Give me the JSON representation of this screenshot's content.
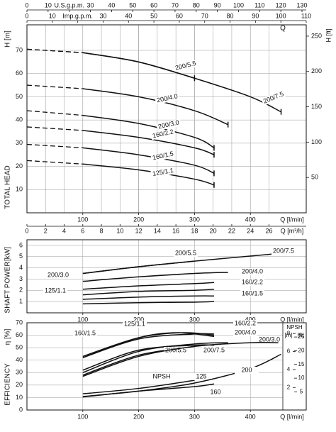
{
  "chart_data": [
    {
      "type": "line",
      "y_label": "H [m]",
      "y_title": "TOTAL HEAD",
      "y2_label": "H [ft]",
      "xlim": [
        0,
        500
      ],
      "xticks": [
        100,
        200,
        300,
        400
      ],
      "x_label": "Q [l/min]",
      "ylim": [
        0,
        81
      ],
      "yticks": [
        10,
        20,
        30,
        40,
        50,
        60,
        70
      ],
      "y2lim": [
        0,
        266
      ],
      "y2ticks": [
        50,
        100,
        150,
        200,
        250
      ],
      "top_label": "Q",
      "top_axes": [
        {
          "label": "U.S.g.p.m.",
          "lim": [
            0,
            132
          ],
          "ticks": [
            0,
            10,
            20,
            30,
            40,
            50,
            60,
            70,
            80,
            90,
            100,
            110,
            120,
            130
          ]
        },
        {
          "label": "Imp.g.p.m.",
          "lim": [
            0,
            110
          ],
          "ticks": [
            0,
            10,
            20,
            30,
            40,
            50,
            60,
            70,
            80,
            90,
            100,
            110
          ]
        }
      ],
      "bottom_axis2": {
        "label": "Q [m³/h]",
        "lim": [
          0,
          30
        ],
        "ticks": [
          0,
          2,
          4,
          6,
          8,
          10,
          12,
          14,
          16,
          18,
          20,
          22,
          24,
          26
        ]
      },
      "dashed_first_segment": true,
      "grid": true,
      "series": [
        {
          "name": "200/5.5",
          "color": "#111111",
          "x": [
            0,
            100,
            200,
            300
          ],
          "values": [
            70.5,
            69,
            65,
            58
          ]
        },
        {
          "name": "200/7.5",
          "color": "#111111",
          "x": [
            0,
            100,
            200,
            300,
            400,
            455
          ],
          "values": [
            70.5,
            69,
            65,
            58,
            50,
            43.5
          ]
        },
        {
          "name": "200/4.0",
          "color": "#111111",
          "x": [
            0,
            100,
            200,
            300,
            360
          ],
          "values": [
            55,
            53.5,
            50,
            44,
            38
          ]
        },
        {
          "name": "200/3.0",
          "color": "#111111",
          "x": [
            0,
            100,
            200,
            300,
            335
          ],
          "values": [
            44,
            42,
            38.5,
            32.5,
            28
          ]
        },
        {
          "name": "160/2.2",
          "color": "#111111",
          "x": [
            0,
            100,
            200,
            300,
            335
          ],
          "values": [
            37,
            35.5,
            32.5,
            28,
            25
          ]
        },
        {
          "name": "160/1.5",
          "color": "#111111",
          "x": [
            0,
            100,
            200,
            300,
            335
          ],
          "values": [
            29.5,
            28,
            25,
            20.5,
            17
          ]
        },
        {
          "name": "125/1.1",
          "color": "#111111",
          "x": [
            0,
            100,
            200,
            300,
            335
          ],
          "values": [
            22.5,
            21,
            18.5,
            14.5,
            12
          ]
        }
      ]
    },
    {
      "type": "line",
      "y_label": "[kW]",
      "y_title": "SHAFT POWER",
      "xlim": [
        0,
        500
      ],
      "xticks": [
        100,
        200,
        300,
        400
      ],
      "x_label": "Q [l/min]",
      "ylim": [
        0,
        6.5
      ],
      "yticks": [
        1,
        2,
        3,
        4,
        5,
        6
      ],
      "grid": true,
      "series": [
        {
          "name": "200/5.5",
          "color": "#111111",
          "x": [
            100,
            200,
            300
          ],
          "values": [
            3.5,
            4.1,
            4.6
          ]
        },
        {
          "name": "200/7.5",
          "color": "#111111",
          "x": [
            100,
            200,
            300,
            455
          ],
          "values": [
            3.5,
            4.1,
            4.6,
            5.3
          ]
        },
        {
          "name": "200/4.0",
          "color": "#111111",
          "x": [
            100,
            200,
            300,
            360
          ],
          "values": [
            2.8,
            3.2,
            3.5,
            3.6
          ]
        },
        {
          "name": "200/3.0",
          "color": "#111111",
          "x": [
            100,
            200,
            300,
            335
          ],
          "values": [
            2.1,
            2.4,
            2.6,
            2.7
          ]
        },
        {
          "name": "160/2.2",
          "color": "#111111",
          "x": [
            100,
            200,
            300,
            335
          ],
          "values": [
            1.6,
            1.9,
            2.0,
            2.1
          ]
        },
        {
          "name": "160/1.5",
          "color": "#111111",
          "x": [
            100,
            200,
            300,
            335
          ],
          "values": [
            1.2,
            1.4,
            1.5,
            1.5
          ]
        },
        {
          "name": "125/1.1",
          "color": "#111111",
          "x": [
            100,
            200,
            300,
            335
          ],
          "values": [
            0.8,
            0.9,
            0.95,
            1.0
          ]
        }
      ]
    },
    {
      "type": "line",
      "y_label": "η [%]",
      "y_title": "EFFICIENCY",
      "xlim": [
        0,
        500
      ],
      "xticks": [
        100,
        200,
        300,
        400
      ],
      "x_label": "Q [l/min]",
      "ylim": [
        0,
        70
      ],
      "yticks": [
        0,
        10,
        20,
        30,
        40,
        50,
        60,
        70
      ],
      "grid": true,
      "y2_label": "NPSH",
      "y2_unit": "[m]",
      "y3_unit": "[ft]",
      "y2lim": [
        -0.5,
        9.2
      ],
      "y2ticks": [
        2,
        4,
        6,
        8
      ],
      "y3lim": [
        -1.6,
        30.2
      ],
      "y3ticks": [
        5,
        10,
        15,
        20,
        25
      ],
      "npsh_label": "NPSH",
      "series": [
        {
          "name": "125/1.1",
          "color": "#111111",
          "x": [
            100,
            200,
            270,
            335
          ],
          "values": [
            42,
            58,
            62,
            59
          ]
        },
        {
          "name": "160/1.5",
          "color": "#111111",
          "x": [
            100,
            200,
            280,
            335
          ],
          "values": [
            43,
            58,
            62,
            60
          ]
        },
        {
          "name": "160/2.2",
          "color": "#111111",
          "x": [
            100,
            200,
            300,
            335
          ],
          "values": [
            42,
            57,
            61,
            61
          ]
        },
        {
          "name": "200/4.0",
          "color": "#111111",
          "x": [
            100,
            200,
            300,
            360
          ],
          "values": [
            30,
            47,
            53,
            54
          ]
        },
        {
          "name": "200/3.0",
          "color": "#111111",
          "x": [
            100,
            200,
            300,
            335
          ],
          "values": [
            32,
            48,
            52,
            52
          ]
        },
        {
          "name": "200/5.5",
          "color": "#111111",
          "x": [
            100,
            200,
            300
          ],
          "values": [
            28,
            44,
            51
          ]
        },
        {
          "name": "200/7.5",
          "color": "#111111",
          "x": [
            100,
            200,
            300,
            400,
            450
          ],
          "values": [
            27,
            43,
            51,
            54,
            54
          ]
        },
        {
          "name": "125",
          "color": "#111111",
          "axis": "y2",
          "x": [
            100,
            200,
            300
          ],
          "values": [
            1.3,
            1.9,
            2.8
          ]
        },
        {
          "name": "160",
          "color": "#111111",
          "axis": "y2",
          "x": [
            100,
            200,
            300,
            335
          ],
          "values": [
            0.95,
            1.6,
            2.1,
            2.4
          ]
        },
        {
          "name": "200",
          "color": "#111111",
          "axis": "y2",
          "x": [
            100,
            200,
            300,
            400,
            455
          ],
          "values": [
            1.0,
            1.6,
            2.5,
            4.1,
            5.7
          ]
        }
      ]
    }
  ]
}
